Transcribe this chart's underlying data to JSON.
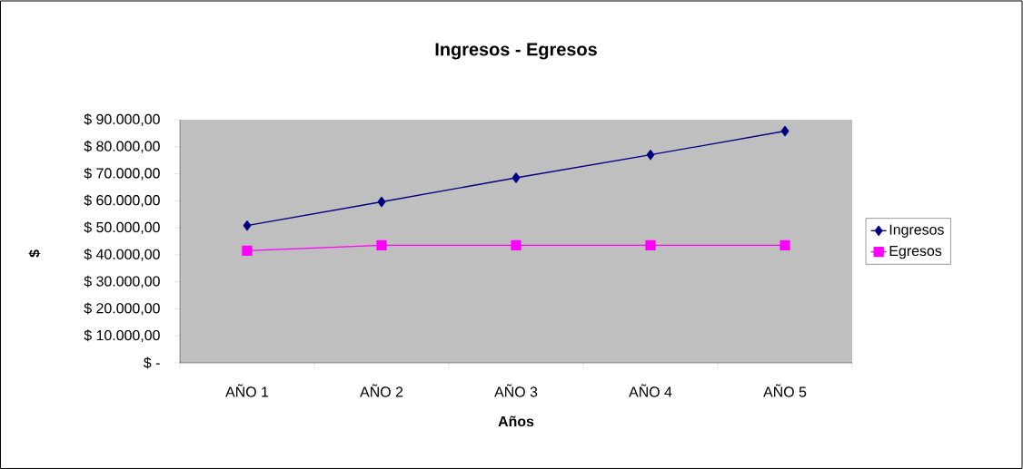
{
  "chart_data": {
    "type": "line",
    "title": "Ingresos - Egresos",
    "xlabel": "Años",
    "ylabel": "$",
    "categories": [
      "AÑO 1",
      "AÑO 2",
      "AÑO 3",
      "AÑO 4",
      "AÑO 5"
    ],
    "series": [
      {
        "name": "Ingresos",
        "color": "#000080",
        "marker": "diamond",
        "values": [
          50800,
          59600,
          68500,
          77000,
          85800
        ]
      },
      {
        "name": "Egresos",
        "color": "#ff00ff",
        "marker": "square",
        "values": [
          41500,
          43500,
          43500,
          43500,
          43500
        ]
      }
    ],
    "ylim": [
      0,
      90000
    ],
    "yticks": [
      {
        "value": 0,
        "label": "$ -"
      },
      {
        "value": 10000,
        "label": "$ 10.000,00"
      },
      {
        "value": 20000,
        "label": "$ 20.000,00"
      },
      {
        "value": 30000,
        "label": "$ 30.000,00"
      },
      {
        "value": 40000,
        "label": "$ 40.000,00"
      },
      {
        "value": 50000,
        "label": "$ 50.000,00"
      },
      {
        "value": 60000,
        "label": "$ 60.000,00"
      },
      {
        "value": 70000,
        "label": "$ 70.000,00"
      },
      {
        "value": 80000,
        "label": "$ 80.000,00"
      },
      {
        "value": 90000,
        "label": "$ 90.000,00"
      }
    ],
    "grid": false,
    "legend": "right",
    "line_style": "solid"
  }
}
